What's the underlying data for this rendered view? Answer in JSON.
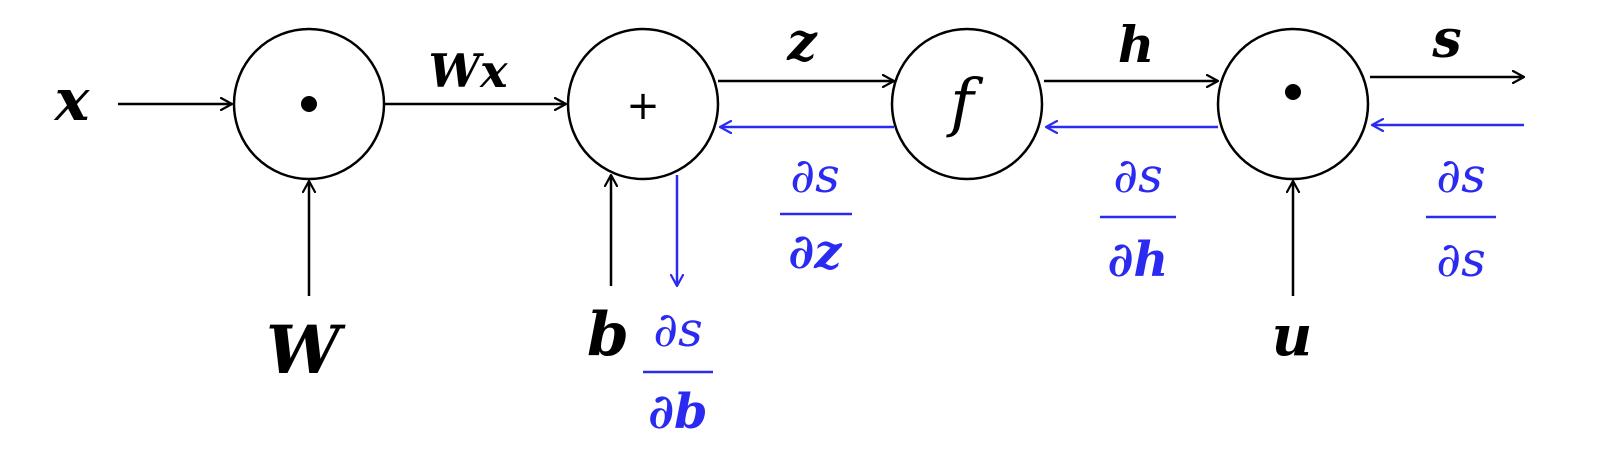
{
  "colors": {
    "forward": "#000000",
    "backward": "#2a2af0"
  },
  "inputs": {
    "x": "x",
    "W": "W",
    "b": "b",
    "u": "u"
  },
  "nodes": {
    "mult1_symbol": "•",
    "add_symbol": "+",
    "f_label": "f",
    "mult2_symbol": "•"
  },
  "edges": {
    "Wx": "Wx",
    "z": "z",
    "h": "h",
    "s": "s"
  },
  "gradients": {
    "ds_dz": {
      "num": "∂s",
      "den": "∂z"
    },
    "ds_dh": {
      "num": "∂s",
      "den": "∂h"
    },
    "ds_ds": {
      "num": "∂s",
      "den": "∂s"
    },
    "ds_db": {
      "num": "∂s",
      "den": "∂b"
    }
  }
}
